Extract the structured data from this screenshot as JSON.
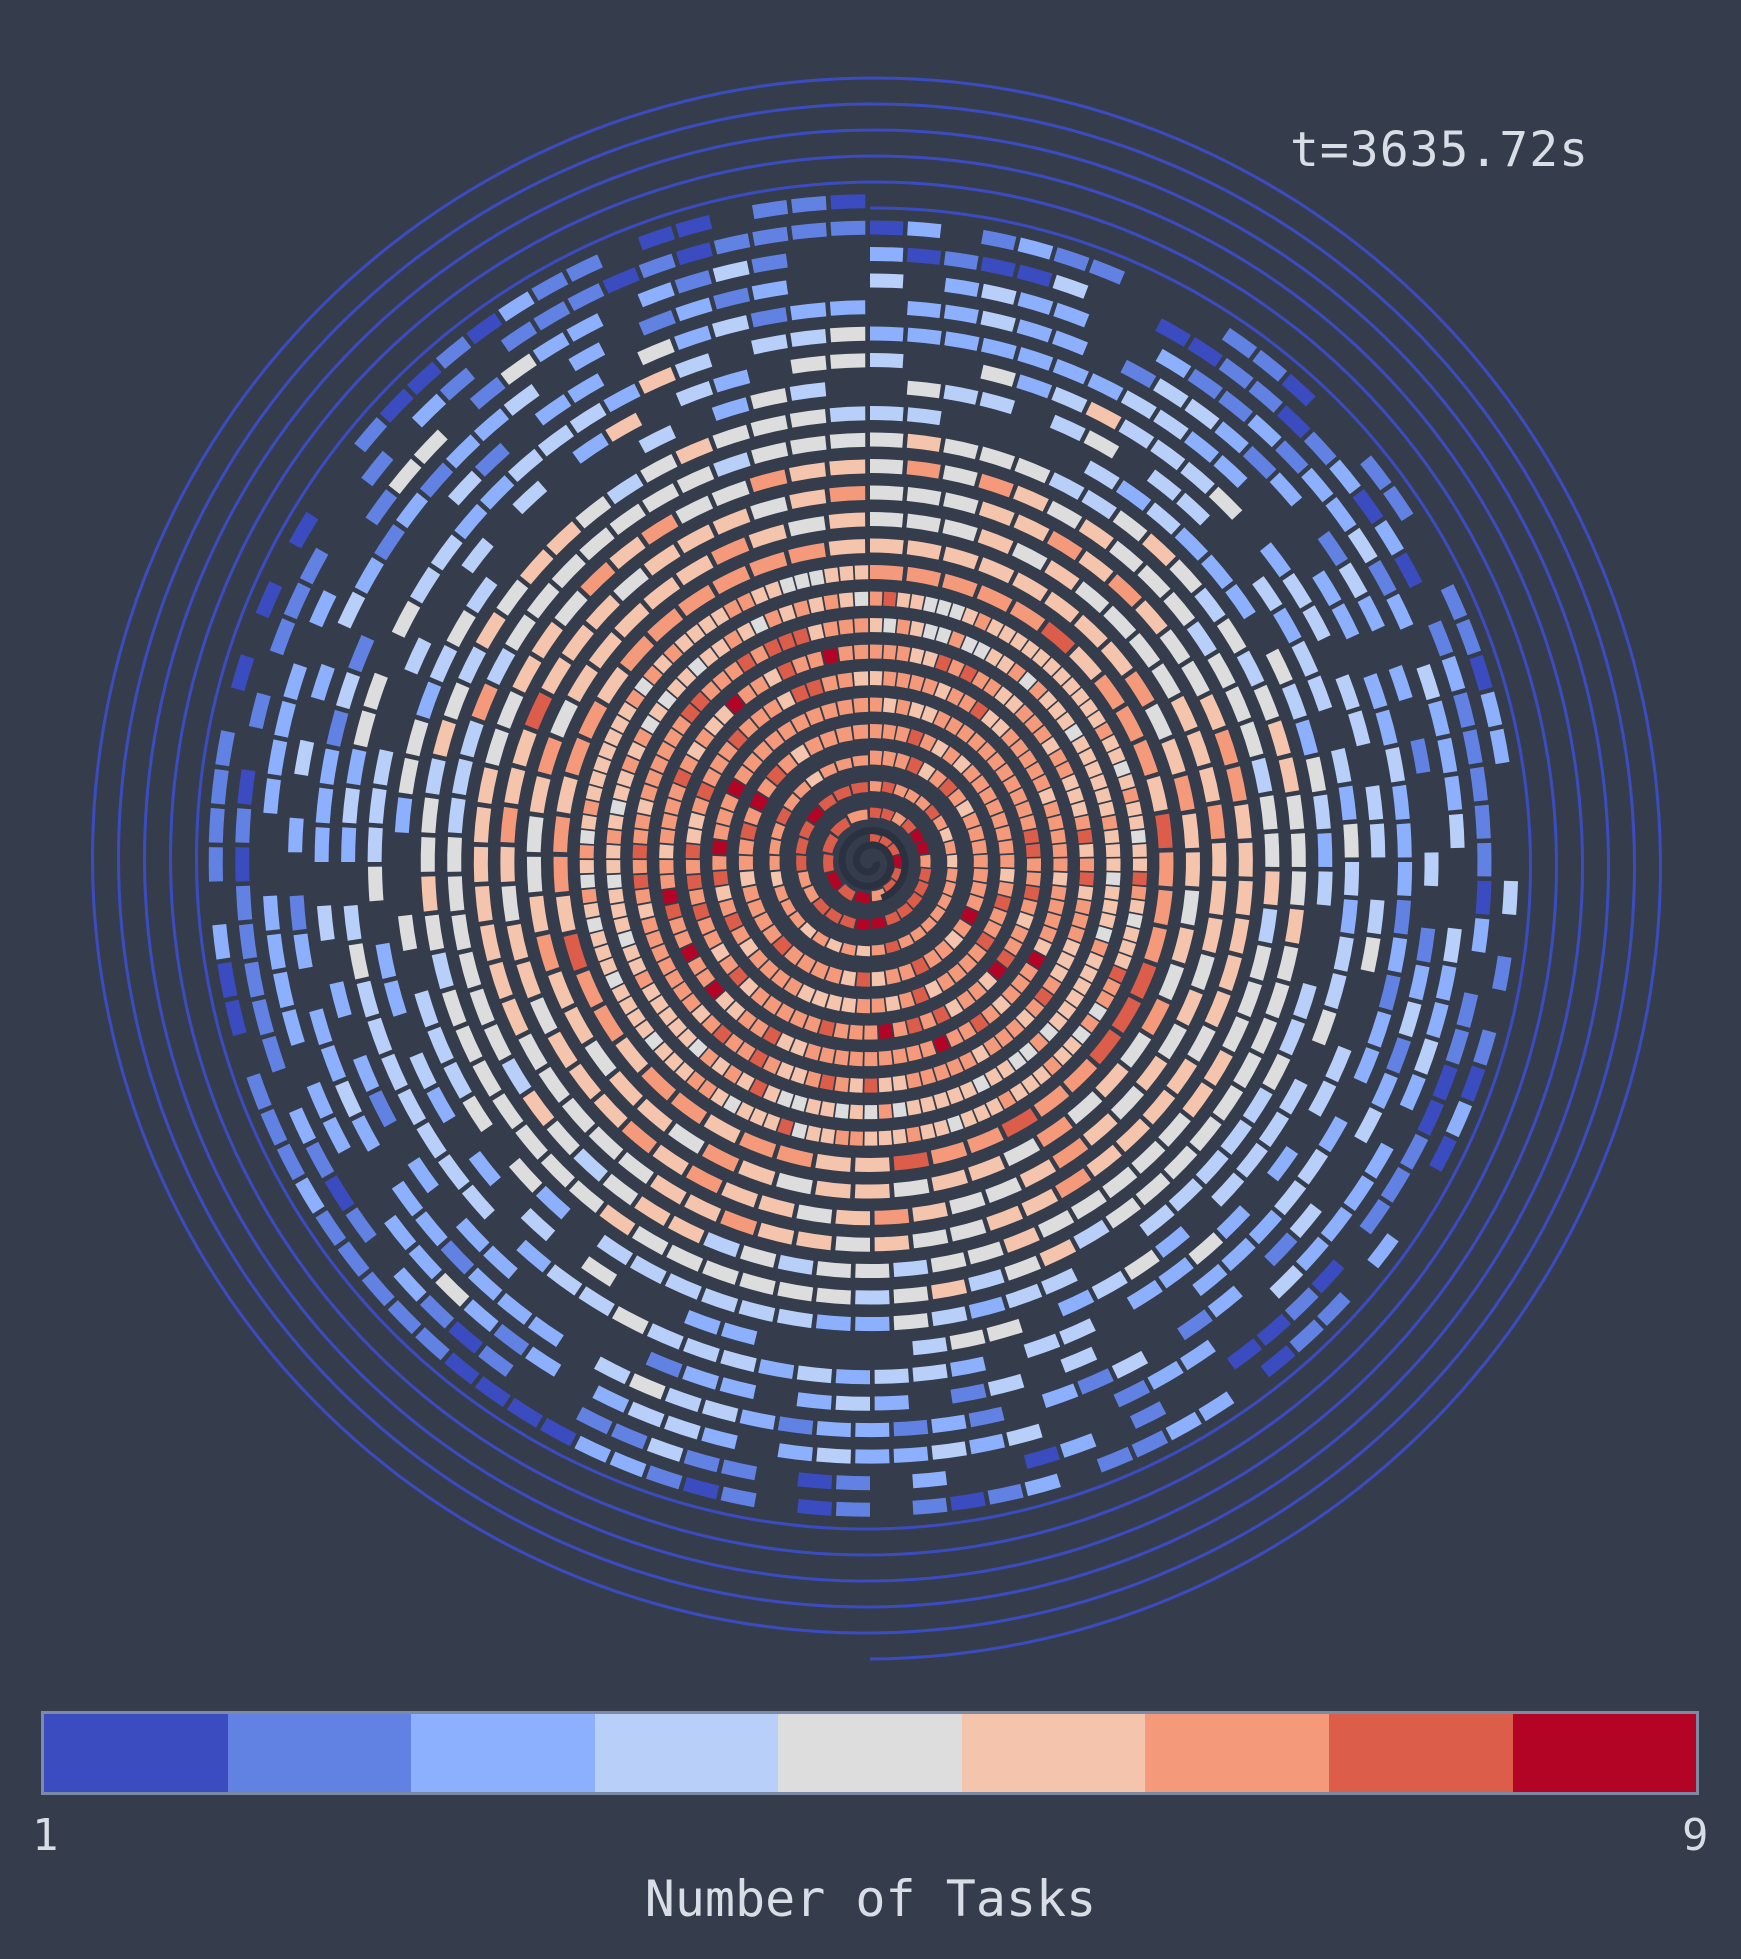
{
  "chart_data": {
    "type": "heatmap",
    "layout": "spiral",
    "timestamp_label": "t=3635.72s",
    "colorbar": {
      "label": "Number of Tasks",
      "min": 1,
      "max": 9,
      "min_label": "1",
      "max_label": "9",
      "colors": [
        "#3b4cc0",
        "#6282e3",
        "#8db0fe",
        "#b8d0f9",
        "#dddddd",
        "#f5c4ac",
        "#f49a7b",
        "#dc5d4a",
        "#b40426"
      ]
    },
    "background": "#353d4d",
    "outer_spiral_color": "#3b4cc0",
    "spiral_turns": 24,
    "radial_task_profile": {
      "description_levels_by_turn": [
        8,
        8,
        7,
        7,
        7,
        7,
        7,
        7,
        6,
        6,
        7,
        6,
        6,
        6,
        5,
        5,
        4,
        4,
        4,
        3,
        3,
        3,
        2,
        2
      ],
      "outer_turns_level": 1
    }
  }
}
